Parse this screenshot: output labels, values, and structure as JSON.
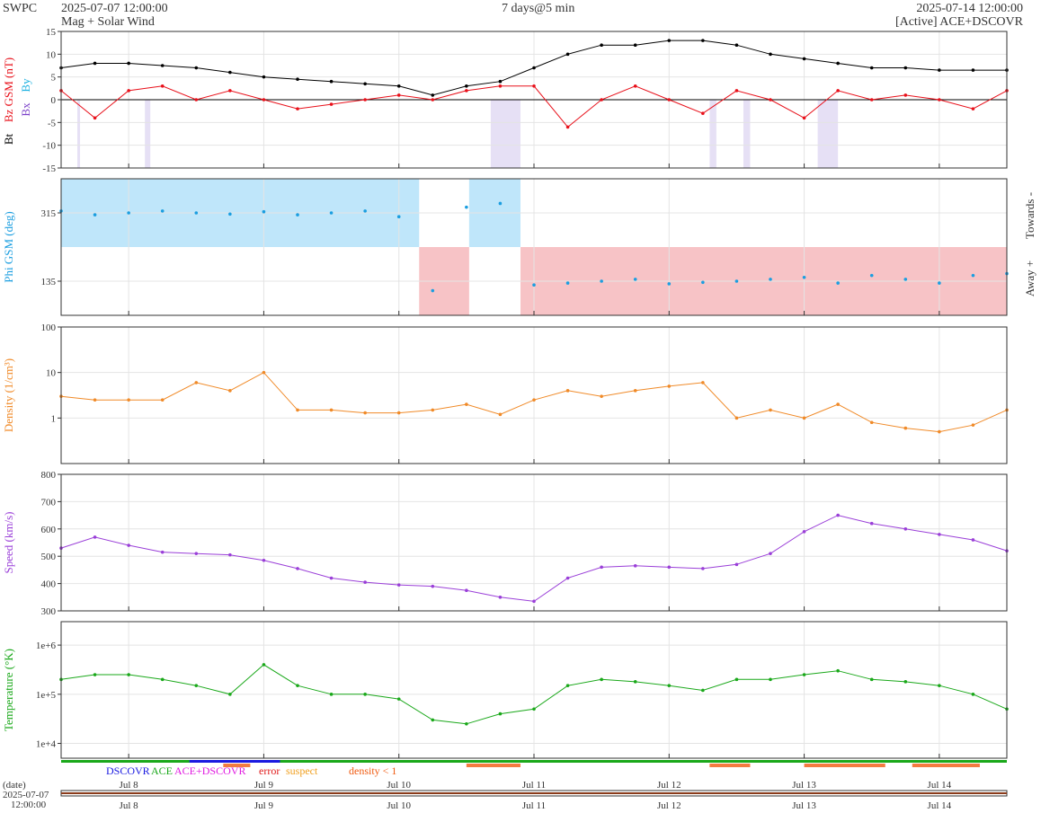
{
  "header": {
    "source": "SWPC",
    "start_time": "2025-07-07 12:00:00",
    "subtitle": "Mag + Solar Wind",
    "span": "7 days@5 min",
    "end_time": "2025-07-14 12:00:00",
    "active_source": "[Active] ACE+DSCOVR"
  },
  "colors": {
    "bt": "#000000",
    "bz": "#e8101a",
    "bx": "#7a3fc8",
    "by": "#1bb0e0",
    "phi": "#1b9ee0",
    "phi_towards_fill": "#bfe6fa",
    "phi_away_fill": "#f7c3c6",
    "density": "#f08a28",
    "speed": "#9a3fd8",
    "temperature": "#1aa81a",
    "grid": "#e4e4e4",
    "axis": "#333333"
  },
  "chart_data": [
    {
      "type": "line",
      "id": "mag",
      "ylabel_parts": [
        "Bt",
        "Bz GSM (nT)"
      ],
      "legend_labels": [
        "Bx",
        "By"
      ],
      "ylim": [
        -15,
        15
      ],
      "yticks": [
        -15,
        -10,
        -5,
        0,
        5,
        10,
        15
      ],
      "zero_line": true,
      "x": [
        0,
        0.25,
        0.5,
        0.75,
        1,
        1.25,
        1.5,
        1.75,
        2,
        2.25,
        2.5,
        2.75,
        3,
        3.25,
        3.5,
        3.75,
        4,
        4.25,
        4.5,
        4.75,
        5,
        5.25,
        5.5,
        5.75,
        6,
        6.25,
        6.5,
        6.75,
        7
      ],
      "series": [
        {
          "key": "bt",
          "name": "Bt",
          "values": [
            7,
            8,
            8,
            7.5,
            7,
            6,
            5,
            4.5,
            4,
            3.5,
            3,
            1,
            3,
            4,
            7,
            10,
            12,
            12,
            13,
            13,
            12,
            10,
            9,
            8,
            7,
            7,
            6.5,
            6.5,
            6.5
          ]
        },
        {
          "key": "bz",
          "name": "Bz GSM",
          "values": [
            2,
            -4,
            2,
            3,
            0,
            2,
            0,
            -2,
            -1,
            0,
            1,
            0,
            2,
            3,
            3,
            -6,
            0,
            3,
            0,
            -3,
            2,
            0,
            -4,
            2,
            0,
            1,
            0,
            -2,
            2
          ]
        }
      ],
      "southward_bands": [
        [
          0.12,
          0.14
        ],
        [
          0.62,
          0.66
        ],
        [
          3.18,
          3.4
        ],
        [
          4.8,
          4.85
        ],
        [
          5.05,
          5.1
        ],
        [
          5.6,
          5.75
        ]
      ]
    },
    {
      "type": "scatter",
      "id": "phi",
      "ylabel": "Phi GSM (deg)",
      "right_labels": [
        "Towards -",
        "Away +"
      ],
      "ylim": [
        45,
        405
      ],
      "yticks": [
        135,
        315
      ],
      "x": [
        0,
        0.25,
        0.5,
        0.75,
        1,
        1.25,
        1.5,
        1.75,
        2,
        2.25,
        2.5,
        2.75,
        3,
        3.25,
        3.5,
        3.75,
        4,
        4.25,
        4.5,
        4.75,
        5,
        5.25,
        5.5,
        5.75,
        6,
        6.25,
        6.5,
        6.75,
        7
      ],
      "values": [
        320,
        310,
        315,
        320,
        315,
        312,
        318,
        310,
        315,
        320,
        305,
        110,
        330,
        340,
        125,
        130,
        135,
        140,
        128,
        132,
        135,
        140,
        145,
        130,
        150,
        140,
        130,
        150,
        155
      ],
      "sectors": [
        {
          "side": "towards",
          "start": 0,
          "end": 2.65
        },
        {
          "side": "away",
          "start": 2.65,
          "end": 3.02
        },
        {
          "side": "towards",
          "start": 3.02,
          "end": 3.4
        },
        {
          "side": "away",
          "start": 3.4,
          "end": 7
        }
      ]
    },
    {
      "type": "line",
      "id": "density",
      "ylabel": "Density (1/cm³)",
      "scale": "log",
      "ylim": [
        0.1,
        100
      ],
      "yticks": [
        1,
        10,
        100
      ],
      "ytick_labels": [
        "1",
        "10",
        "100"
      ],
      "x": [
        0,
        0.25,
        0.5,
        0.75,
        1,
        1.25,
        1.5,
        1.75,
        2,
        2.25,
        2.5,
        2.75,
        3,
        3.25,
        3.5,
        3.75,
        4,
        4.25,
        4.5,
        4.75,
        5,
        5.25,
        5.5,
        5.75,
        6,
        6.25,
        6.5,
        6.75,
        7
      ],
      "values": [
        3,
        2.5,
        2.5,
        2.5,
        6,
        4,
        10,
        1.5,
        1.5,
        1.3,
        1.3,
        1.5,
        2,
        1.2,
        2.5,
        4,
        3,
        4,
        5,
        6,
        1,
        1.5,
        1,
        2,
        0.8,
        0.6,
        0.5,
        0.7,
        1.5
      ]
    },
    {
      "type": "line",
      "id": "speed",
      "ylabel": "Speed (km/s)",
      "ylim": [
        300,
        800
      ],
      "yticks": [
        300,
        400,
        500,
        600,
        700,
        800
      ],
      "x": [
        0,
        0.25,
        0.5,
        0.75,
        1,
        1.25,
        1.5,
        1.75,
        2,
        2.25,
        2.5,
        2.75,
        3,
        3.25,
        3.5,
        3.75,
        4,
        4.25,
        4.5,
        4.75,
        5,
        5.25,
        5.5,
        5.75,
        6,
        6.25,
        6.5,
        6.75,
        7
      ],
      "values": [
        530,
        570,
        540,
        515,
        510,
        505,
        485,
        455,
        420,
        405,
        395,
        390,
        375,
        350,
        335,
        420,
        460,
        465,
        460,
        455,
        470,
        510,
        590,
        650,
        620,
        600,
        580,
        560,
        520
      ]
    },
    {
      "type": "line",
      "id": "temperature",
      "ylabel": "Temperature (°K)",
      "scale": "log",
      "ylim": [
        5000,
        3000000
      ],
      "yticks": [
        10000,
        100000,
        1000000
      ],
      "ytick_labels": [
        "1e+4",
        "1e+5",
        "1e+6"
      ],
      "x": [
        0,
        0.25,
        0.5,
        0.75,
        1,
        1.25,
        1.5,
        1.75,
        2,
        2.25,
        2.5,
        2.75,
        3,
        3.25,
        3.5,
        3.75,
        4,
        4.25,
        4.5,
        4.75,
        5,
        5.25,
        5.5,
        5.75,
        6,
        6.25,
        6.5,
        6.75,
        7
      ],
      "values": [
        200000,
        250000,
        250000,
        200000,
        150000,
        100000,
        400000,
        150000,
        100000,
        100000,
        80000,
        30000,
        25000,
        40000,
        50000,
        150000,
        200000,
        180000,
        150000,
        120000,
        200000,
        200000,
        250000,
        300000,
        200000,
        180000,
        150000,
        100000,
        50000
      ]
    }
  ],
  "status_legend": {
    "labels": [
      "DSCOVR",
      "ACE",
      "ACE+DSCOVR",
      "error",
      "suspect",
      "density < 1"
    ],
    "colors": [
      "#1a1ae0",
      "#1aa81a",
      "#e01ae0",
      "#e01a1a",
      "#f0a020",
      "#f05a10"
    ]
  },
  "x_axis": {
    "tick_labels": [
      "Jul 8",
      "Jul 9",
      "Jul 10",
      "Jul 11",
      "Jul 12",
      "Jul 13",
      "Jul 14"
    ],
    "tick_days": [
      0.5,
      1.5,
      2.5,
      3.5,
      4.5,
      5.5,
      6.5
    ],
    "date_caption": "(date)",
    "start_date": "2025-07-07",
    "start_clock": "12:00:00"
  }
}
